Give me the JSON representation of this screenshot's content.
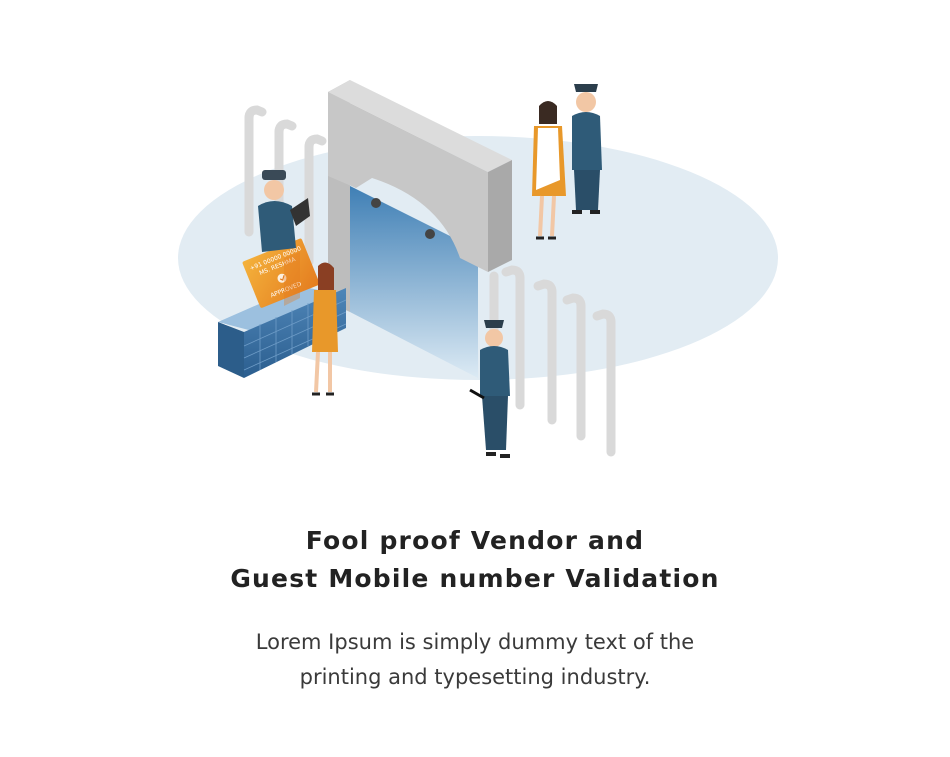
{
  "headline": {
    "line1": "Fool proof Vendor and",
    "line2": "Guest Mobile number Validation"
  },
  "description": {
    "line1": "Lorem Ipsum is simply dummy text of the",
    "line2": "printing and typesetting industry."
  },
  "id_card": {
    "number": "+91 00000 00000",
    "name": "MS. RESHMA",
    "status": "APPROVED"
  },
  "colors": {
    "floor": "#e2ecf3",
    "gate": "#c9c9c9",
    "gate_glass": "#5b93c4",
    "card": "#f0a12c",
    "uniform": "#2f5b78",
    "dress_orange": "#e8982a",
    "text_heading": "#222222",
    "text_body": "#3a3a3a"
  }
}
